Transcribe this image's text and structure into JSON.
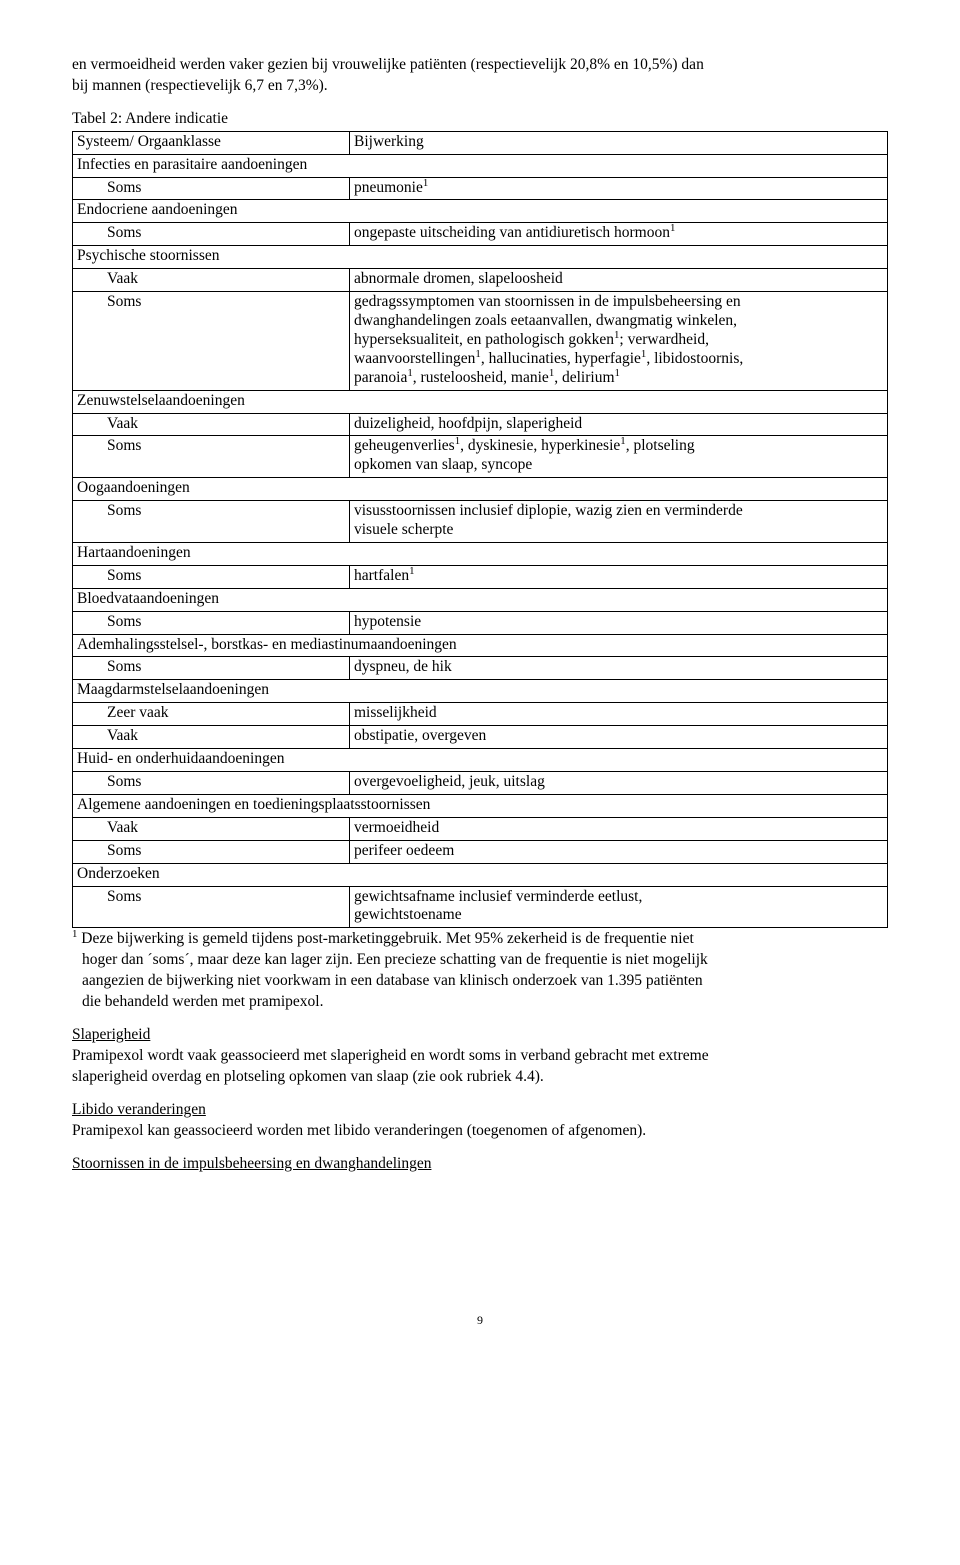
{
  "intro": {
    "line1": "en vermoeidheid werden vaker gezien bij vrouwelijke patiënten (respectievelijk 20,8% en 10,5%) dan",
    "line2": "bij mannen (respectievelijk 6,7 en 7,3%)."
  },
  "table_title": "Tabel 2: Andere indicatie",
  "header": {
    "c1": "Systeem/ Orgaanklasse",
    "c2": "Bijwerking"
  },
  "s1": {
    "title": "Infecties en parasitaire aandoeningen",
    "r1": {
      "f": "Soms",
      "v": "pneumonie",
      "sup": "1"
    }
  },
  "s2": {
    "title": "Endocriene aandoeningen",
    "r1": {
      "f": "Soms",
      "v": "ongepaste uitscheiding van antidiuretisch hormoon",
      "sup": "1"
    }
  },
  "s3": {
    "title": "Psychische stoornissen",
    "r1": {
      "f": "Vaak",
      "v": "abnormale dromen, slapeloosheid"
    },
    "r2": {
      "f": "Soms",
      "l1a": "gedragssymptomen van stoornissen in de impulsbeheersing en",
      "l1b": "dwanghandelingen zoals eetaanvallen, dwangmatig winkelen,",
      "l1c": "hyperseksualiteit, en pathologisch gokken",
      "sup_c": "1",
      "l1c2": "; verwardheid,",
      "l2a": "waanvoorstellingen",
      "sup_d": "1",
      "l2b": ", hallucinaties, hyperfagie",
      "sup_e": "1",
      "l2c": ", libidostoornis,",
      "l3a": "paranoia",
      "sup_f": "1",
      "l3b": ", rusteloosheid, manie",
      "sup_g": "1",
      "l3c": ", delirium",
      "sup_h": "1"
    }
  },
  "s4": {
    "title": "Zenuwstelselaandoeningen",
    "r1": {
      "f": "Vaak",
      "v": "duizeligheid, hoofdpijn, slaperigheid"
    },
    "r2": {
      "f": "Soms",
      "va": "geheugenverlies",
      "sa": "1",
      "vb": ", dyskinesie, hyperkinesie",
      "sb": "1",
      "vc": ", plotseling",
      "l2": "opkomen van slaap, syncope"
    }
  },
  "s5": {
    "title": "Oogaandoeningen",
    "r1": {
      "f": "Soms",
      "l1": "visusstoornissen inclusief diplopie, wazig zien en verminderde",
      "l2": "visuele scherpte"
    }
  },
  "s6": {
    "title": "Hartaandoeningen",
    "r1": {
      "f": "Soms",
      "v": "hartfalen",
      "sup": "1"
    }
  },
  "s7": {
    "title": "Bloedvataandoeningen",
    "r1": {
      "f": "Soms",
      "v": "hypotensie"
    }
  },
  "s8": {
    "title": "Ademhalingsstelsel-, borstkas- en mediastinumaandoeningen",
    "r1": {
      "f": "Soms",
      "v": "dyspneu, de hik"
    }
  },
  "s9": {
    "title": "Maagdarmstelselaandoeningen",
    "r1": {
      "f": "Zeer vaak",
      "v": "misselijkheid"
    },
    "r2": {
      "f": "Vaak",
      "v": "obstipatie, overgeven"
    }
  },
  "s10": {
    "title": "Huid- en onderhuidaandoeningen",
    "r1": {
      "f": "Soms",
      "v": "overgevoeligheid, jeuk, uitslag"
    }
  },
  "s11": {
    "title": "Algemene aandoeningen en toedieningsplaatsstoornissen",
    "r1": {
      "f": "Vaak",
      "v": "vermoeidheid"
    },
    "r2": {
      "f": "Soms",
      "v": "perifeer oedeem"
    }
  },
  "s12": {
    "title": "Onderzoeken",
    "r1": {
      "f": "Soms",
      "l1": "gewichtsafname inclusief verminderde eetlust,",
      "l2": "gewichtstoename"
    }
  },
  "footnote": {
    "sup": "1",
    "l1": " Deze bijwerking is gemeld tijdens post-marketinggebruik. Met 95% zekerheid is de frequentie niet",
    "l2": "hoger dan ´soms´, maar deze kan lager zijn. Een precieze schatting van de frequentie is niet mogelijk",
    "l3": "aangezien de bijwerking niet voorkwam in een database van klinisch onderzoek van 1.395 patiënten",
    "l4": "die behandeld werden met pramipexol."
  },
  "sec_a": {
    "title": "Slaperigheid",
    "l1": "Pramipexol wordt vaak geassocieerd met slaperigheid en wordt soms in verband gebracht met extreme",
    "l2": "slaperigheid overdag en plotseling opkomen van slaap (zie ook rubriek 4.4)."
  },
  "sec_b": {
    "title": "Libido veranderingen",
    "l1": "Pramipexol kan geassocieerd worden met libido veranderingen (toegenomen of afgenomen)."
  },
  "sec_c": {
    "title": "Stoornissen in de impulsbeheersing en dwanghandelingen"
  },
  "pagenum": "9"
}
